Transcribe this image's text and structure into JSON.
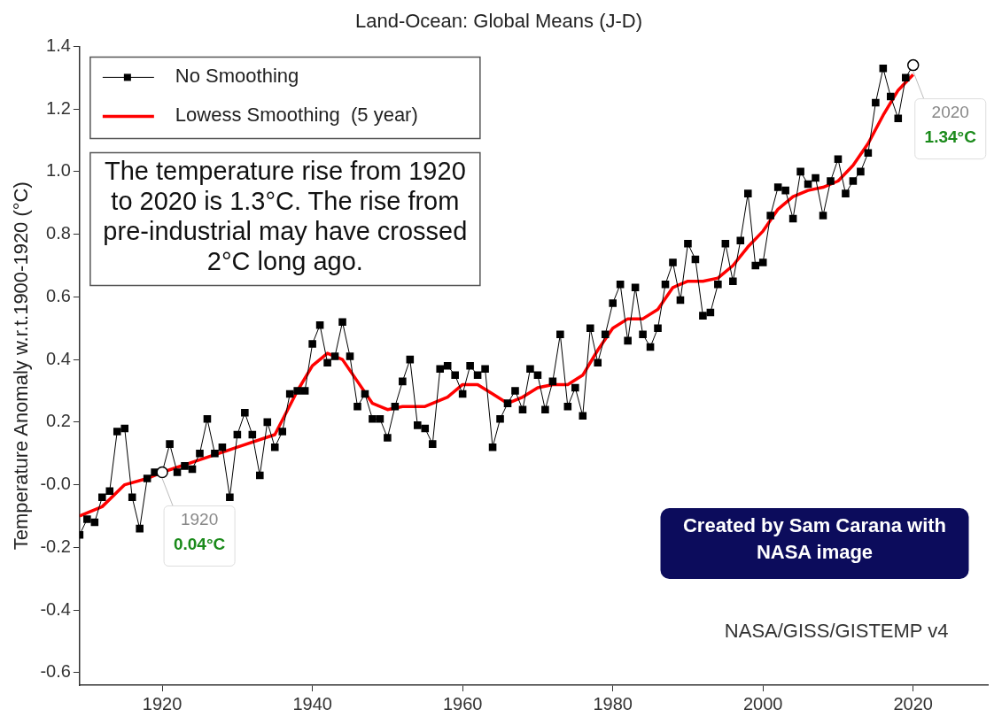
{
  "chart_data": {
    "type": "line",
    "title": "Land-Ocean: Global Means (J-D)",
    "ylabel": "Temperature Anomaly w.r.t.1900-1920 (°C)",
    "series": [
      {
        "name": "No Smoothing",
        "color": "#000000",
        "marker": "square",
        "x": [
          1909,
          1910,
          1911,
          1912,
          1913,
          1914,
          1915,
          1916,
          1917,
          1918,
          1919,
          1920,
          1921,
          1922,
          1923,
          1924,
          1925,
          1926,
          1927,
          1928,
          1929,
          1930,
          1931,
          1932,
          1933,
          1934,
          1935,
          1936,
          1937,
          1938,
          1939,
          1940,
          1941,
          1942,
          1943,
          1944,
          1945,
          1946,
          1947,
          1948,
          1949,
          1950,
          1951,
          1952,
          1953,
          1954,
          1955,
          1956,
          1957,
          1958,
          1959,
          1960,
          1961,
          1962,
          1963,
          1964,
          1965,
          1966,
          1967,
          1968,
          1969,
          1970,
          1971,
          1972,
          1973,
          1974,
          1975,
          1976,
          1977,
          1978,
          1979,
          1980,
          1981,
          1982,
          1983,
          1984,
          1985,
          1986,
          1987,
          1988,
          1989,
          1990,
          1991,
          1992,
          1993,
          1994,
          1995,
          1996,
          1997,
          1998,
          1999,
          2000,
          2001,
          2002,
          2003,
          2004,
          2005,
          2006,
          2007,
          2008,
          2009,
          2010,
          2011,
          2012,
          2013,
          2014,
          2015,
          2016,
          2017,
          2018,
          2019,
          2020
        ],
        "values": [
          -0.16,
          -0.11,
          -0.12,
          -0.04,
          -0.02,
          0.17,
          0.18,
          -0.04,
          -0.14,
          0.02,
          0.04,
          0.04,
          0.13,
          0.04,
          0.06,
          0.05,
          0.1,
          0.21,
          0.1,
          0.12,
          -0.04,
          0.16,
          0.23,
          0.16,
          0.03,
          0.2,
          0.12,
          0.17,
          0.29,
          0.3,
          0.3,
          0.45,
          0.51,
          0.39,
          0.41,
          0.52,
          0.41,
          0.25,
          0.29,
          0.21,
          0.21,
          0.15,
          0.25,
          0.33,
          0.4,
          0.19,
          0.18,
          0.13,
          0.37,
          0.38,
          0.35,
          0.29,
          0.38,
          0.35,
          0.37,
          0.12,
          0.21,
          0.26,
          0.3,
          0.24,
          0.37,
          0.35,
          0.24,
          0.33,
          0.48,
          0.25,
          0.31,
          0.22,
          0.5,
          0.39,
          0.48,
          0.58,
          0.64,
          0.46,
          0.63,
          0.48,
          0.44,
          0.5,
          0.64,
          0.71,
          0.59,
          0.77,
          0.72,
          0.54,
          0.55,
          0.64,
          0.77,
          0.65,
          0.78,
          0.93,
          0.7,
          0.71,
          0.86,
          0.95,
          0.94,
          0.85,
          1.0,
          0.96,
          0.98,
          0.86,
          0.97,
          1.04,
          0.93,
          0.97,
          1.0,
          1.06,
          1.22,
          1.33,
          1.24,
          1.17,
          1.3,
          1.34
        ]
      },
      {
        "name": "Lowess Smoothing  (5 year)",
        "color": "#ff0000",
        "marker": "none",
        "x": [
          1909,
          1912,
          1915,
          1918,
          1920,
          1925,
          1930,
          1935,
          1938,
          1940,
          1942,
          1944,
          1946,
          1948,
          1950,
          1952,
          1955,
          1958,
          1960,
          1962,
          1964,
          1966,
          1968,
          1970,
          1972,
          1974,
          1976,
          1978,
          1980,
          1982,
          1984,
          1986,
          1988,
          1990,
          1992,
          1994,
          1996,
          1998,
          2000,
          2002,
          2004,
          2006,
          2008,
          2010,
          2012,
          2014,
          2016,
          2018,
          2020
        ],
        "values": [
          -0.1,
          -0.07,
          0.0,
          0.02,
          0.04,
          0.08,
          0.12,
          0.16,
          0.3,
          0.38,
          0.42,
          0.4,
          0.33,
          0.26,
          0.24,
          0.25,
          0.25,
          0.28,
          0.32,
          0.32,
          0.29,
          0.26,
          0.28,
          0.31,
          0.32,
          0.32,
          0.35,
          0.43,
          0.5,
          0.53,
          0.53,
          0.56,
          0.63,
          0.65,
          0.65,
          0.66,
          0.7,
          0.76,
          0.81,
          0.88,
          0.92,
          0.94,
          0.95,
          0.97,
          1.02,
          1.09,
          1.18,
          1.26,
          1.31
        ]
      }
    ],
    "xlim": [
      1909,
      2030
    ],
    "xticks": [
      1920,
      1940,
      1960,
      1980,
      2000,
      2020
    ],
    "ylim": [
      -0.64,
      1.4
    ],
    "yticks": [
      {
        "value": 1.4,
        "label": "1.4"
      },
      {
        "value": 1.2,
        "label": "1.2"
      },
      {
        "value": 1,
        "label": "1.0"
      },
      {
        "value": 0.8,
        "label": "0.8"
      },
      {
        "value": 0.6,
        "label": "0.6"
      },
      {
        "value": 0.4,
        "label": "0.4"
      },
      {
        "value": 0.2,
        "label": "0.2"
      },
      {
        "value": 0,
        "label": "-0.0"
      },
      {
        "value": -0.2,
        "label": "-0.2"
      },
      {
        "value": -0.4,
        "label": "-0.4"
      },
      {
        "value": -0.6,
        "label": "-0.6"
      }
    ],
    "grid": false,
    "legend": "top left",
    "line_style": "solid",
    "annotations": [
      "The temperature rise from 1920 to 2020 is 1.3°C. The rise from pre-industrial may have crossed 2°C long ago.",
      "Created by Sam Carana with NASA image",
      "NASA/GISS/GISTEMP v4",
      {
        "text": "1920 0.04°C",
        "x": 1920,
        "y": 0.04
      },
      {
        "text": "2020 1.34°C",
        "x": 2020,
        "y": 1.34
      }
    ]
  }
}
